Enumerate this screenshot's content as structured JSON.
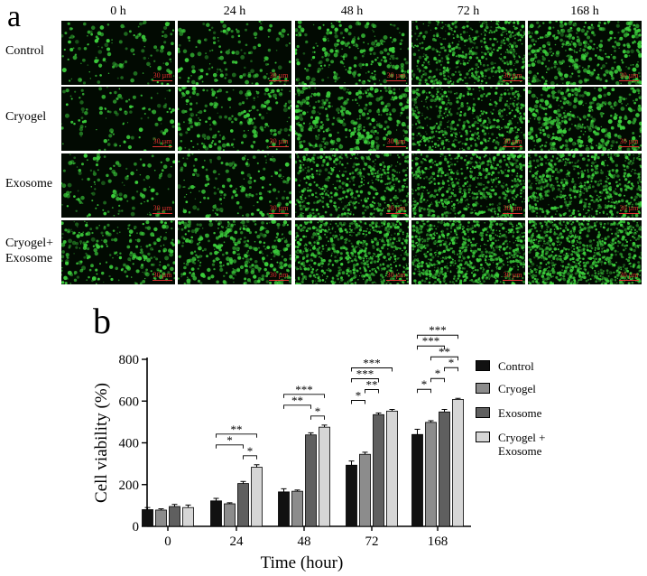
{
  "panel_a": {
    "letter": "a",
    "columns": [
      "0 h",
      "24 h",
      "48 h",
      "72 h",
      "168 h"
    ],
    "rows": [
      {
        "label": [
          "Control"
        ],
        "densities": [
          140,
          160,
          260,
          520,
          380
        ]
      },
      {
        "label": [
          "Cryogel"
        ],
        "densities": [
          120,
          240,
          360,
          520,
          420
        ]
      },
      {
        "label": [
          "Exosome"
        ],
        "densities": [
          140,
          180,
          560,
          600,
          640
        ]
      },
      {
        "label": [
          "Cryogel+",
          "Exosome"
        ],
        "densities": [
          260,
          360,
          720,
          800,
          860
        ]
      }
    ],
    "scale_bar_label": "30 µm",
    "fluorescence_color": "#3ccf3c"
  },
  "panel_b": {
    "letter": "b"
  },
  "chart_data": {
    "type": "bar",
    "categories": [
      "0",
      "24",
      "48",
      "72",
      "168"
    ],
    "series": [
      {
        "name": "Control",
        "values": [
          80,
          122,
          165,
          293,
          440
        ],
        "errors": [
          10,
          12,
          15,
          20,
          25
        ],
        "color": "#111111"
      },
      {
        "name": "Cryogel",
        "values": [
          78,
          108,
          168,
          345,
          498
        ],
        "errors": [
          6,
          5,
          6,
          10,
          8
        ],
        "color": "#8c8c8c"
      },
      {
        "name": "Exosome",
        "values": [
          95,
          205,
          438,
          535,
          548
        ],
        "errors": [
          10,
          10,
          10,
          8,
          12
        ],
        "color": "#5f5f5f"
      },
      {
        "name": "Cryogel +\nExosome",
        "values": [
          90,
          283,
          475,
          552,
          608
        ],
        "errors": [
          12,
          12,
          10,
          8,
          5
        ],
        "color": "#d6d6d6"
      }
    ],
    "xlabel": "Time (hour)",
    "ylabel": "Cell viability (%)",
    "ylim": [
      0,
      800
    ],
    "yticks": [
      0,
      200,
      400,
      600,
      800
    ],
    "legend_position": "right",
    "significance": [
      {
        "group": 1,
        "from": 2,
        "to": 3,
        "label": "*"
      },
      {
        "group": 1,
        "from": 0,
        "to": 2,
        "label": "*"
      },
      {
        "group": 1,
        "from": 0,
        "to": 3,
        "label": "**"
      },
      {
        "group": 2,
        "from": 2,
        "to": 3,
        "label": "*"
      },
      {
        "group": 2,
        "from": 0,
        "to": 2,
        "label": "**"
      },
      {
        "group": 2,
        "from": 0,
        "to": 3,
        "label": "***"
      },
      {
        "group": 3,
        "from": 0,
        "to": 1,
        "label": "*"
      },
      {
        "group": 3,
        "from": 1,
        "to": 2,
        "label": "**"
      },
      {
        "group": 3,
        "from": 0,
        "to": 2,
        "label": "***"
      },
      {
        "group": 3,
        "from": 0,
        "to": 3,
        "label": "***"
      },
      {
        "group": 4,
        "from": 0,
        "to": 1,
        "label": "*"
      },
      {
        "group": 4,
        "from": 1,
        "to": 2,
        "label": "*"
      },
      {
        "group": 4,
        "from": 2,
        "to": 3,
        "label": "*"
      },
      {
        "group": 4,
        "from": 1,
        "to": 3,
        "label": "**"
      },
      {
        "group": 4,
        "from": 0,
        "to": 2,
        "label": "***"
      },
      {
        "group": 4,
        "from": 0,
        "to": 3,
        "label": "***"
      }
    ]
  }
}
